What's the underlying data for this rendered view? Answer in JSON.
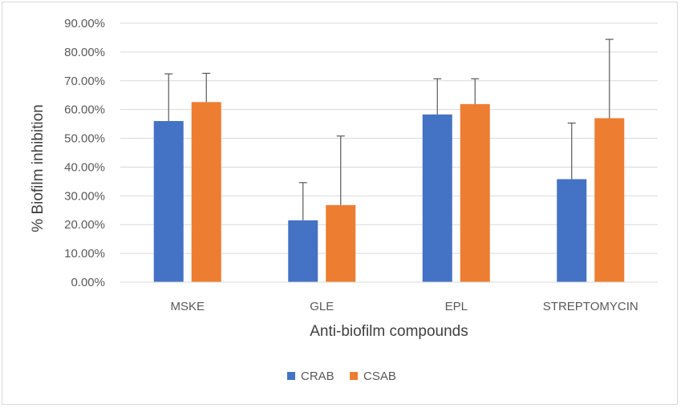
{
  "chart_data": {
    "type": "bar",
    "title": "",
    "xlabel": "Anti-biofilm compounds",
    "ylabel": "% Biofilm inhibition",
    "categories": [
      "MSKE",
      "GLE",
      "EPL",
      "STREPTOMYCIN"
    ],
    "series": [
      {
        "name": "CRAB",
        "color": "#4472c4",
        "values": [
          56.0,
          21.5,
          58.3,
          35.8
        ],
        "error": [
          16.4,
          13.1,
          12.4,
          19.5
        ]
      },
      {
        "name": "CSAB",
        "color": "#ed7d31",
        "values": [
          62.6,
          26.8,
          61.9,
          57.0
        ],
        "error": [
          10.0,
          24.0,
          8.8,
          27.4
        ]
      }
    ],
    "ylim": [
      0,
      90
    ],
    "yticks": [
      "0.00%",
      "10.00%",
      "20.00%",
      "30.00%",
      "40.00%",
      "50.00%",
      "60.00%",
      "70.00%",
      "80.00%",
      "90.00%"
    ],
    "ytick_step": 10,
    "grid": true,
    "legend_position": "bottom",
    "error_bar_color": "#595959",
    "grid_color": "#d9d9d9"
  }
}
